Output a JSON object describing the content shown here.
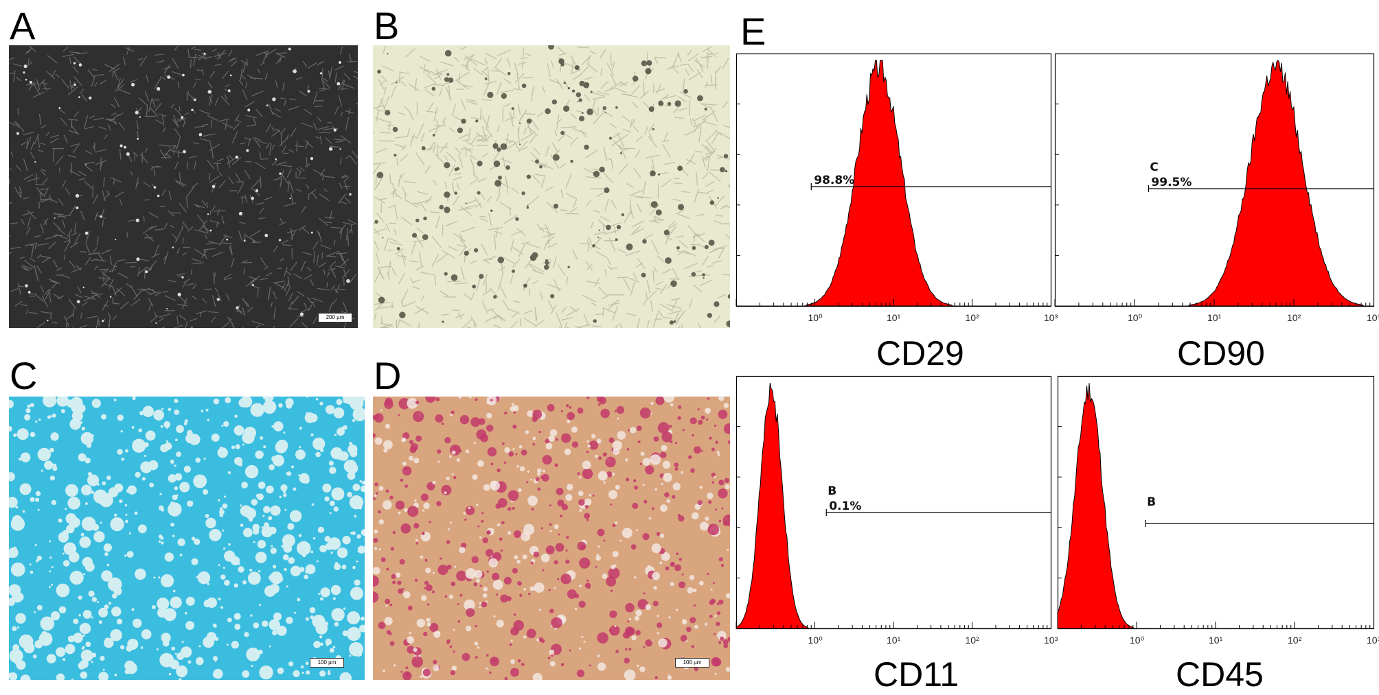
{
  "panels": {
    "A": {
      "label": "A",
      "scale": "200 µm"
    },
    "B": {
      "label": "B"
    },
    "C": {
      "label": "C",
      "scale": "100 µm"
    },
    "D": {
      "label": "D",
      "scale": "100 µm"
    },
    "E": {
      "label": "E"
    }
  },
  "colors": {
    "histogram_fill": "#ff0000",
    "phase_contrast_bg": "#2f2f2f",
    "brightfield_bg": "#e8ead0",
    "alcian_bg": "#3bbde0",
    "oilred_bg": "#d9a57e"
  },
  "chart_data": [
    {
      "type": "area",
      "id": "cd29",
      "title": "CD29",
      "xscale": "log",
      "xlim": [
        0.1,
        1000
      ],
      "tick_labels": [
        "10⁰",
        "10¹",
        "10²",
        "10³"
      ],
      "marker_text": "98.8%",
      "gate_letter": "",
      "gate_start": 0.9,
      "peak_x": 6.5,
      "spread": 0.28
    },
    {
      "type": "area",
      "id": "cd90",
      "title": "CD90",
      "xscale": "log",
      "xlim": [
        0.1,
        1000
      ],
      "tick_labels": [
        "10⁰",
        "10¹",
        "10²",
        "10³"
      ],
      "marker_text": "99.5%",
      "gate_letter": "C",
      "gate_start": 1.5,
      "peak_x": 60,
      "spread": 0.33
    },
    {
      "type": "area",
      "id": "cd11",
      "title": "CD11",
      "xscale": "log",
      "xlim": [
        0.1,
        1000
      ],
      "tick_labels": [
        "10⁰",
        "10¹",
        "10²",
        "10³"
      ],
      "marker_text": "0.1%",
      "gate_letter": "B",
      "gate_start": 1.4,
      "peak_x": 0.28,
      "spread": 0.14
    },
    {
      "type": "area",
      "id": "cd45",
      "title": "CD45",
      "xscale": "log",
      "xlim": [
        0.1,
        1000
      ],
      "tick_labels": [
        "10⁰",
        "10¹",
        "10²",
        "10³"
      ],
      "marker_text": "",
      "gate_letter": "B",
      "gate_start": 1.3,
      "peak_x": 0.25,
      "spread": 0.17
    }
  ]
}
